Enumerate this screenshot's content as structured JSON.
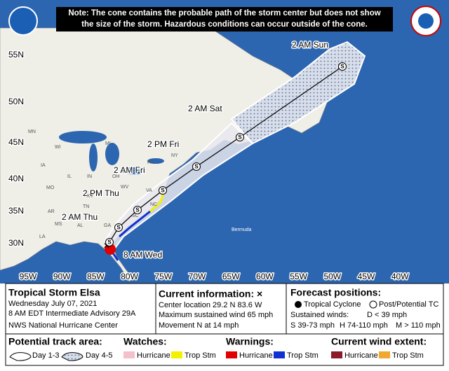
{
  "note": [
    "Note: The cone contains the probable path of the storm center but does not show",
    "the size of the storm. Hazardous conditions can occur outside of the cone."
  ],
  "map": {
    "latitude_labels": [
      "55N",
      "50N",
      "45N",
      "40N",
      "35N",
      "30N"
    ],
    "longitude_labels": [
      "95W",
      "90W",
      "85W",
      "80W",
      "75W",
      "70W",
      "65W",
      "60W",
      "55W",
      "50W",
      "45W",
      "40W"
    ],
    "forecast_labels": [
      "8 AM Wed",
      "2 AM Thu",
      "2 PM Thu",
      "2 AM Fri",
      "2 PM Fri",
      "2 AM Sat",
      "2 AM Sun"
    ],
    "place_labels": [
      "Bermuda"
    ],
    "state_labels": [
      "MN",
      "WI",
      "MI",
      "IA",
      "IL",
      "IN",
      "OH",
      "PA",
      "NY",
      "MO",
      "KY",
      "WV",
      "VA",
      "TN",
      "NC",
      "AR",
      "SC",
      "MS",
      "AL",
      "GA",
      "LA"
    ]
  },
  "info": {
    "title": "Tropical Storm Elsa",
    "date": "Wednesday July 07, 2021",
    "advisory": "8 AM EDT Intermediate Advisory 29A",
    "agency": "NWS National Hurricane Center",
    "current_heading": "Current information: ×",
    "center_location": "Center location 29.2 N 83.6 W",
    "max_wind": "Maximum sustained wind 65 mph",
    "movement": "Movement N at 14 mph",
    "forecast_heading": "Forecast positions:",
    "tropical_cyclone": "Tropical Cyclone",
    "post_tc": "Post/Potential TC",
    "sustained_winds": "Sustained winds:",
    "d_category": "D < 39 mph",
    "s_category": "S 39-73 mph",
    "h_category": "H 74-110 mph",
    "m_category": "M > 110 mph"
  },
  "legend": {
    "track_heading": "Potential track area:",
    "day_1_3": "Day 1-3",
    "day_4_5": "Day 4-5",
    "watches_heading": "Watches:",
    "watch_hurricane": "Hurricane",
    "watch_trop_stm": "Trop Stm",
    "warnings_heading": "Warnings:",
    "warning_hurricane": "Hurricane",
    "warning_trop_stm": "Trop Stm",
    "wind_heading": "Current wind extent:",
    "wind_hurricane": "Hurricane",
    "wind_trop_stm": "Trop Stm"
  }
}
